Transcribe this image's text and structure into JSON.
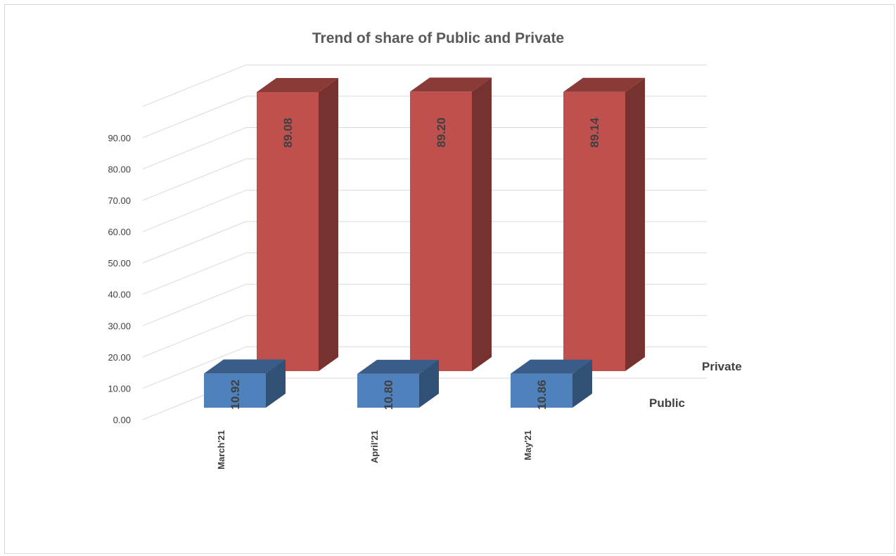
{
  "chart_data": {
    "type": "bar",
    "title": "Trend of  share of Public and Private",
    "categories": [
      "March'21",
      "April'21",
      "May'21"
    ],
    "series": [
      {
        "name": "Public",
        "values": [
          10.92,
          10.8,
          10.86
        ],
        "labels": [
          "10.92",
          "10.80",
          "10.86"
        ],
        "color": "#4f81bd"
      },
      {
        "name": "Private",
        "values": [
          89.08,
          89.2,
          89.14
        ],
        "labels": [
          "89.08",
          "89.20",
          "89.14"
        ],
        "color": "#c0504d"
      }
    ],
    "y_ticks": [
      "0.00",
      "10.00",
      "20.00",
      "30.00",
      "40.00",
      "50.00",
      "60.00",
      "70.00",
      "80.00",
      "90.00"
    ],
    "ylim": [
      0,
      100
    ],
    "xlabel": "",
    "ylabel": "",
    "grid": true,
    "view": "3d-column"
  }
}
